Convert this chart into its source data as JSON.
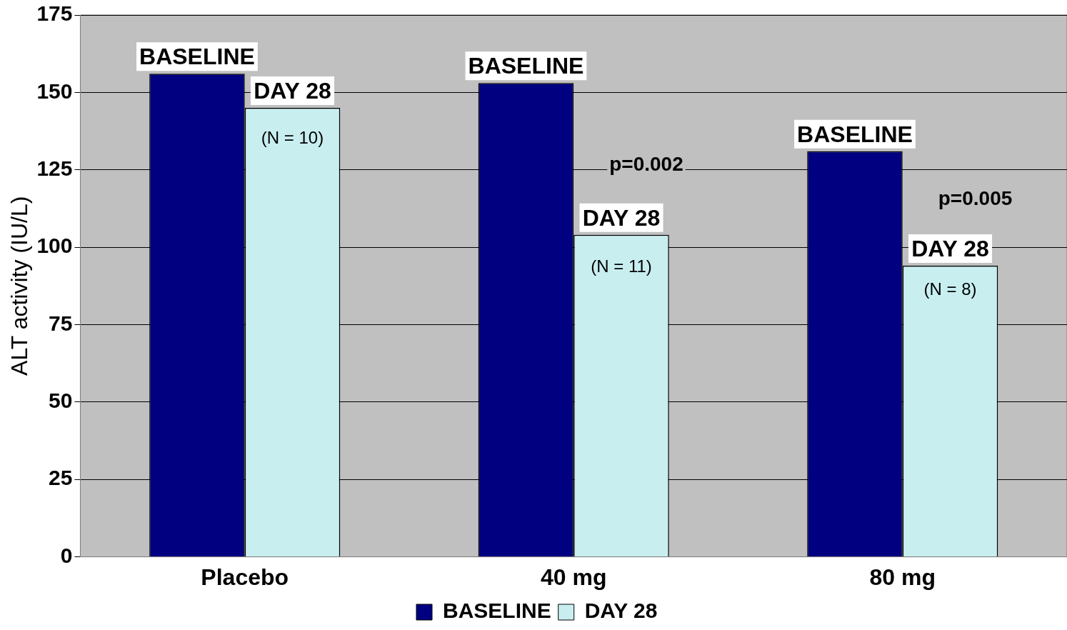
{
  "chart_data": {
    "type": "bar",
    "ylabel": "ALT activity (IU/L)",
    "categories": [
      "Placebo",
      "40 mg",
      "80 mg"
    ],
    "series": [
      {
        "name": "BASELINE",
        "color": "#000080",
        "values": [
          156,
          153,
          131
        ]
      },
      {
        "name": "DAY 28",
        "color": "#c8eef0",
        "values": [
          145,
          104,
          94
        ]
      }
    ],
    "ylim": [
      0,
      175
    ],
    "yticks": [
      0,
      25,
      50,
      75,
      100,
      125,
      150,
      175
    ],
    "grid": "y",
    "legend": "bottom",
    "annotations": [
      {
        "text": "(N = 10)",
        "x": "Placebo",
        "y": 135
      },
      {
        "text": "(N = 11)",
        "x": "40 mg",
        "y": 93.5
      },
      {
        "text": "(N = 8)",
        "x": "80 mg",
        "y": 86
      },
      {
        "text": "p=0.002",
        "x": "40 mg",
        "y": 126.5
      },
      {
        "text": "p=0.005",
        "x": "80 mg",
        "y": 115.5
      }
    ]
  }
}
